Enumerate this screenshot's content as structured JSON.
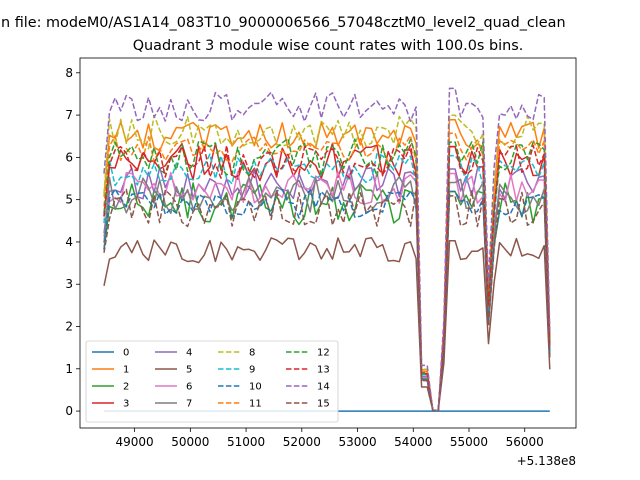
{
  "figure": {
    "suptitle": "n file: modeM0/AS1A14_083T10_9000006566_57048cztM0_level2_quad_clean",
    "title": "Quadrant 3 module wise count rates with 100.0s bins.",
    "x_offset_label": "+5.138e8"
  },
  "chart_data": {
    "type": "line",
    "title": "Quadrant 3 module wise count rates with 100.0s bins.",
    "xlabel": "",
    "ylabel": "",
    "x_offset": 513800000,
    "xlim": [
      48020,
      56920
    ],
    "ylim": [
      -0.4,
      8.35
    ],
    "x_ticks": [
      49000,
      50000,
      51000,
      52000,
      53000,
      54000,
      55000,
      56000
    ],
    "x_tick_labels": [
      "49000",
      "50000",
      "51000",
      "52000",
      "53000",
      "54000",
      "55000",
      "56000"
    ],
    "y_ticks": [
      0,
      1,
      2,
      3,
      4,
      5,
      6,
      7,
      8
    ],
    "y_tick_labels": [
      "0",
      "1",
      "2",
      "3",
      "4",
      "5",
      "6",
      "7",
      "8"
    ],
    "x_start": 48450,
    "x_step": 100,
    "n_points": 81,
    "grid": false,
    "legend_location": "lower left",
    "legend_columns": 4,
    "series": [
      {
        "name": "0",
        "color": "#1f77b4",
        "style": "solid",
        "level": 0.0,
        "spread": 0.0,
        "dips": false
      },
      {
        "name": "1",
        "color": "#ff7f0e",
        "style": "solid",
        "level": 6.5,
        "spread": 0.35,
        "dips": true
      },
      {
        "name": "2",
        "color": "#2ca02c",
        "style": "solid",
        "level": 4.9,
        "spread": 0.5,
        "dips": true
      },
      {
        "name": "3",
        "color": "#d62728",
        "style": "solid",
        "level": 5.9,
        "spread": 0.45,
        "dips": true
      },
      {
        "name": "4",
        "color": "#9467bd",
        "style": "solid",
        "level": 5.4,
        "spread": 0.4,
        "dips": true
      },
      {
        "name": "5",
        "color": "#8c564b",
        "style": "solid",
        "level": 3.8,
        "spread": 0.3,
        "dips": true
      },
      {
        "name": "6",
        "color": "#e377c2",
        "style": "solid",
        "level": 5.3,
        "spread": 0.4,
        "dips": true
      },
      {
        "name": "7",
        "color": "#7f7f7f",
        "style": "solid",
        "level": 5.1,
        "spread": 0.45,
        "dips": true
      },
      {
        "name": "8",
        "color": "#bcbd22",
        "style": "dashed",
        "level": 6.6,
        "spread": 0.4,
        "dips": true
      },
      {
        "name": "9",
        "color": "#17becf",
        "style": "dashed",
        "level": 5.7,
        "spread": 0.4,
        "dips": true
      },
      {
        "name": "10",
        "color": "#1f77b4",
        "style": "dashed",
        "level": 4.9,
        "spread": 0.35,
        "dips": true
      },
      {
        "name": "11",
        "color": "#ff7f0e",
        "style": "dashed",
        "level": 6.2,
        "spread": 0.35,
        "dips": true
      },
      {
        "name": "12",
        "color": "#2ca02c",
        "style": "dashed",
        "level": 6.0,
        "spread": 0.45,
        "dips": true
      },
      {
        "name": "13",
        "color": "#d62728",
        "style": "dashed",
        "level": 5.9,
        "spread": 0.4,
        "dips": true
      },
      {
        "name": "14",
        "color": "#9467bd",
        "style": "dashed",
        "level": 7.2,
        "spread": 0.35,
        "dips": true
      },
      {
        "name": "15",
        "color": "#8c564b",
        "style": "dashed",
        "level": 4.8,
        "spread": 0.45,
        "dips": true
      }
    ]
  }
}
